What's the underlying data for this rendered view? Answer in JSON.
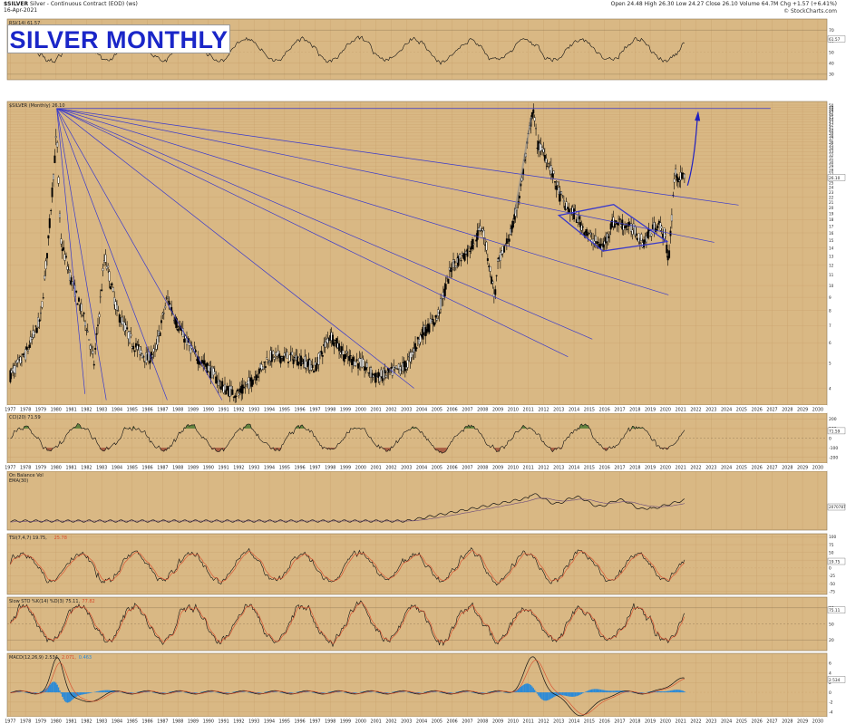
{
  "header": {
    "symbol": "$SILVER",
    "description": "Silver - Continuous Contract (EOD) (ws)",
    "date": "16-Apr-2021",
    "ohlc": "Open 24.48  High 26.30  Low 24.27  Close 26.10  Volume 64.7M  Chg +1.57 (+6.41%)",
    "brand": "© StockCharts.com"
  },
  "title_box": {
    "text": "SILVER MONTHLY"
  },
  "colors": {
    "background": "#d9b884",
    "price": "#000000",
    "fan_lines": "#3a3acb",
    "positive_fill": "#4d7a32",
    "negative_fill": "#a0503a",
    "signal": "#d94a2a",
    "histogram": "#2a8ad8",
    "arrow": "#2020c0"
  },
  "x_axis": {
    "years": [
      "1977",
      "1978",
      "1979",
      "1980",
      "1981",
      "1982",
      "1983",
      "1984",
      "1985",
      "1986",
      "1987",
      "1988",
      "1989",
      "1990",
      "1991",
      "1992",
      "1993",
      "1994",
      "1995",
      "1996",
      "1997",
      "1998",
      "1999",
      "2000",
      "2001",
      "2002",
      "2003",
      "2004",
      "2005",
      "2006",
      "2007",
      "2008",
      "2009",
      "2010",
      "2011",
      "2012",
      "2013",
      "2014",
      "2015",
      "2016",
      "2017",
      "2018",
      "2019",
      "2020",
      "2021",
      "2022",
      "2023",
      "2024",
      "2025",
      "2026",
      "2027",
      "2028",
      "2029",
      "2030"
    ]
  },
  "panels": {
    "rsi": {
      "label": "RSI(14) 61.57",
      "ticks": [
        "70",
        "60",
        "50",
        "40",
        "30"
      ],
      "value_tag": "61.57"
    },
    "price": {
      "label": "$SILVER (Monthly) 26.10",
      "ticks": [
        "50",
        "49",
        "48",
        "47",
        "46",
        "45",
        "44",
        "43",
        "42",
        "41",
        "40",
        "39",
        "38",
        "37",
        "36",
        "35",
        "34",
        "33",
        "32",
        "31",
        "30",
        "29",
        "28",
        "27",
        "26",
        "25",
        "24",
        "23",
        "22",
        "21",
        "20",
        "19",
        "18",
        "17",
        "16",
        "15",
        "14",
        "13",
        "12",
        "11",
        "10",
        "9",
        "8",
        "7",
        "6",
        "5",
        "4"
      ],
      "value_tag": "26.10"
    },
    "cci": {
      "label": "CCI(20) 71.59",
      "ticks": [
        "200",
        "100",
        "0",
        "-100",
        "-200"
      ],
      "value_tag": "71.59"
    },
    "obv": {
      "label": "On Balance Vol",
      "sublabel": "EMA(30)",
      "value_tag": "2070787"
    },
    "tsi": {
      "label": "TSI(7,4,7) 19.75,",
      "signal_label": "25.78",
      "ticks": [
        "100",
        "75",
        "50",
        "25",
        "0",
        "-25",
        "-50",
        "-75"
      ],
      "value_tag": "19.75"
    },
    "sto": {
      "label": "Slow STO %K(14) %D(3) 75.11,",
      "signal_label": "77.82",
      "ticks": [
        "80",
        "50",
        "20"
      ],
      "value_tag": "75.11"
    },
    "macd": {
      "label": "MACD(12,26,9) 2.534,",
      "signal_label": "2.071,",
      "hist_label": "0.463",
      "ticks": [
        "6",
        "4",
        "2",
        "0",
        "-2",
        "-4"
      ],
      "value_tag": "2.534"
    }
  },
  "chart_data": {
    "type": "line",
    "title": "SILVER MONTHLY",
    "series": [
      {
        "name": "$SILVER (Monthly)",
        "x": [
          1977,
          1978,
          1979,
          1979.5,
          1980.05,
          1980.3,
          1981,
          1982,
          1982.5,
          1983.2,
          1984,
          1985,
          1986,
          1986.5,
          1987.3,
          1988,
          1989,
          1990,
          1991,
          1992,
          1993,
          1994,
          1995,
          1996,
          1997,
          1998,
          1999,
          2000,
          2001,
          2002,
          2003,
          2004,
          2005,
          2006,
          2007,
          2008,
          2008.8,
          2009,
          2010,
          2010.5,
          2011.3,
          2011.6,
          2012,
          2012.5,
          2013,
          2013.5,
          2014,
          2015,
          2015.9,
          2016.5,
          2017,
          2018,
          2018.5,
          2019,
          2019.5,
          2020,
          2020.2,
          2020.6,
          2021,
          2021.3
        ],
        "y": [
          4.5,
          5.4,
          7.5,
          15,
          39.5,
          15,
          10.5,
          7,
          5,
          13,
          8,
          6,
          5.2,
          5.5,
          9,
          7,
          5.5,
          4.8,
          4,
          3.8,
          4.4,
          5.3,
          5.3,
          5.2,
          4.8,
          6.5,
          5.3,
          5,
          4.4,
          4.6,
          4.9,
          6.5,
          7.5,
          12,
          13.5,
          17,
          9,
          12,
          17,
          24,
          48.5,
          35,
          33,
          28,
          23,
          20,
          19,
          15.5,
          14,
          17.5,
          17.5,
          16.3,
          14.7,
          16,
          17.5,
          15.5,
          12,
          27,
          26,
          26.1
        ],
        "ylim": [
          3.5,
          50
        ],
        "scale": "log"
      }
    ],
    "indicators": [
      "RSI(14)",
      "CCI(20)",
      "On Balance Vol",
      "EMA(30)",
      "TSI(7,4,7)",
      "Slow STO %K(14) %D(3)",
      "MACD(12,26,9)"
    ],
    "annotations": [
      "speed resistance fan from 1980 high",
      "horizontal line at 1980 high",
      "upward arrow to ~50",
      "diamond pattern 2013-2020"
    ]
  }
}
